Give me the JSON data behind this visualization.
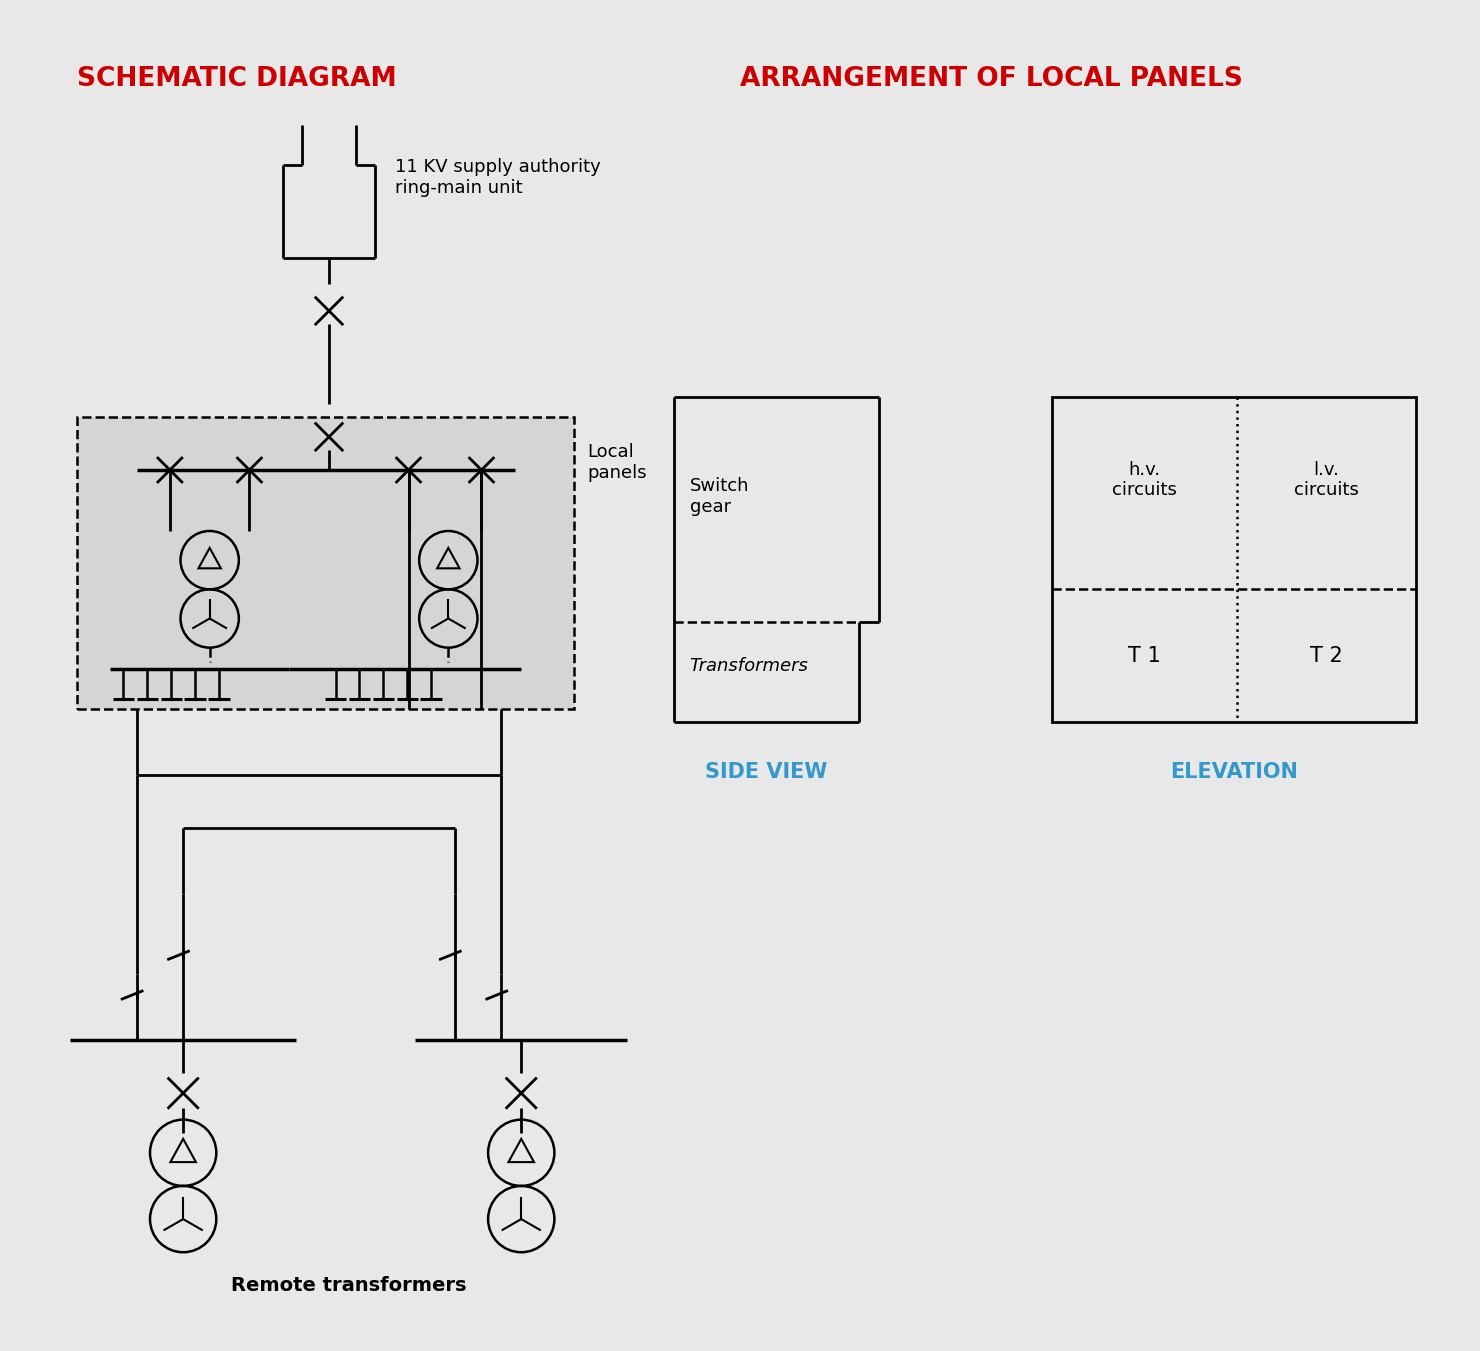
{
  "bg_color": "#e8e8e8",
  "title_left": "SCHEMATIC DIAGRAM",
  "title_right": "ARRANGEMENT OF LOCAL PANELS",
  "title_color": "#cc0000",
  "title_fontsize": 19,
  "label_color": "#3399cc",
  "line_color": "#000000",
  "label_side_view": "SIDE VIEW",
  "label_elevation": "ELEVATION",
  "text_11kv": "11 KV supply authority\nring-main unit",
  "text_local_panels": "Local\npanels",
  "text_switchgear": "Switch\ngear",
  "text_transformers": "Transformers",
  "text_hv_circuits": "h.v.\ncircuits",
  "text_lv_circuits": "l.v.\ncircuits",
  "text_T1": "T 1",
  "text_T2": "T 2",
  "text_remote": "Remote transformers"
}
